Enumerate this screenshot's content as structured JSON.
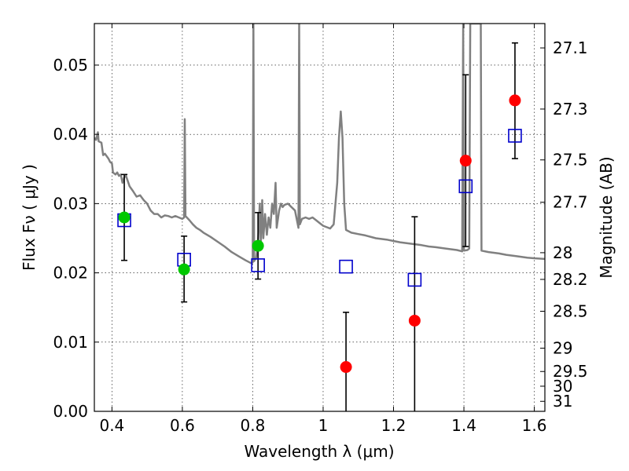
{
  "chart_data": {
    "type": "scatter",
    "title": "",
    "xlabel": "Wavelength  λ (μm)",
    "ylabel": "Flux  Fν  ( μJy )",
    "y2label": "Magnitude (AB)",
    "xlim": [
      0.35,
      1.63
    ],
    "ylim": [
      0.0,
      0.056
    ],
    "grid": true,
    "legend": "none",
    "x_ticks": [
      "0.4",
      "0.6",
      "0.8",
      "1",
      "1.2",
      "1.4",
      "1.6"
    ],
    "x_tick_values": [
      0.4,
      0.6,
      0.8,
      1.0,
      1.2,
      1.4,
      1.6
    ],
    "y_ticks": [
      "0.00",
      "0.01",
      "0.02",
      "0.03",
      "0.04",
      "0.05"
    ],
    "y_tick_values": [
      0.0,
      0.01,
      0.02,
      0.03,
      0.04,
      0.05
    ],
    "mag_ticks": [
      "27.1",
      "27.3",
      "27.5",
      "27.7",
      "28",
      "28.2",
      "28.5",
      "29",
      "29.5",
      "30",
      "31"
    ],
    "mag_tick_values": [
      27.1,
      27.3,
      27.5,
      27.7,
      28.0,
      28.2,
      28.5,
      29.0,
      29.5,
      30.0,
      31.0
    ],
    "colors": {
      "template": "#808080",
      "green": "#00c800",
      "red": "#ff0000",
      "model": "#0000cc",
      "errorbar": "#000000"
    },
    "template_spectrum": [
      [
        0.35,
        0.0395
      ],
      [
        0.355,
        0.0392
      ],
      [
        0.36,
        0.0403
      ],
      [
        0.362,
        0.039
      ],
      [
        0.37,
        0.0388
      ],
      [
        0.375,
        0.037
      ],
      [
        0.38,
        0.0372
      ],
      [
        0.39,
        0.0365
      ],
      [
        0.395,
        0.036
      ],
      [
        0.4,
        0.0358
      ],
      [
        0.403,
        0.0345
      ],
      [
        0.41,
        0.0342
      ],
      [
        0.415,
        0.0345
      ],
      [
        0.42,
        0.034
      ],
      [
        0.425,
        0.0342
      ],
      [
        0.43,
        0.033
      ],
      [
        0.435,
        0.0338
      ],
      [
        0.44,
        0.034
      ],
      [
        0.45,
        0.0325
      ],
      [
        0.46,
        0.0318
      ],
      [
        0.47,
        0.031
      ],
      [
        0.48,
        0.0312
      ],
      [
        0.49,
        0.0305
      ],
      [
        0.5,
        0.03
      ],
      [
        0.51,
        0.029
      ],
      [
        0.52,
        0.0285
      ],
      [
        0.53,
        0.0285
      ],
      [
        0.54,
        0.028
      ],
      [
        0.55,
        0.0283
      ],
      [
        0.56,
        0.0282
      ],
      [
        0.57,
        0.028
      ],
      [
        0.58,
        0.0282
      ],
      [
        0.59,
        0.028
      ],
      [
        0.6,
        0.0278
      ],
      [
        0.605,
        0.028
      ],
      [
        0.607,
        0.0422
      ],
      [
        0.609,
        0.0282
      ],
      [
        0.62,
        0.0276
      ],
      [
        0.63,
        0.027
      ],
      [
        0.64,
        0.0265
      ],
      [
        0.65,
        0.0262
      ],
      [
        0.66,
        0.0258
      ],
      [
        0.68,
        0.0252
      ],
      [
        0.7,
        0.0245
      ],
      [
        0.72,
        0.0238
      ],
      [
        0.74,
        0.023
      ],
      [
        0.76,
        0.0224
      ],
      [
        0.78,
        0.0218
      ],
      [
        0.795,
        0.0214
      ],
      [
        0.8,
        0.0215
      ],
      [
        0.802,
        0.056
      ],
      [
        0.804,
        0.0217
      ],
      [
        0.81,
        0.0222
      ],
      [
        0.815,
        0.0245
      ],
      [
        0.82,
        0.03
      ],
      [
        0.823,
        0.024
      ],
      [
        0.827,
        0.0305
      ],
      [
        0.83,
        0.025
      ],
      [
        0.835,
        0.0285
      ],
      [
        0.84,
        0.0255
      ],
      [
        0.845,
        0.028
      ],
      [
        0.85,
        0.0265
      ],
      [
        0.855,
        0.03
      ],
      [
        0.86,
        0.0285
      ],
      [
        0.865,
        0.033
      ],
      [
        0.868,
        0.0265
      ],
      [
        0.875,
        0.029
      ],
      [
        0.88,
        0.03
      ],
      [
        0.885,
        0.0295
      ],
      [
        0.89,
        0.0298
      ],
      [
        0.9,
        0.03
      ],
      [
        0.91,
        0.0295
      ],
      [
        0.92,
        0.029
      ],
      [
        0.928,
        0.027
      ],
      [
        0.93,
        0.0265
      ],
      [
        0.932,
        0.056
      ],
      [
        0.934,
        0.027
      ],
      [
        0.94,
        0.0278
      ],
      [
        0.95,
        0.028
      ],
      [
        0.96,
        0.0278
      ],
      [
        0.97,
        0.028
      ],
      [
        0.98,
        0.0276
      ],
      [
        0.99,
        0.0272
      ],
      [
        1.0,
        0.0268
      ],
      [
        1.01,
        0.0266
      ],
      [
        1.02,
        0.0264
      ],
      [
        1.03,
        0.027
      ],
      [
        1.04,
        0.033
      ],
      [
        1.045,
        0.0395
      ],
      [
        1.05,
        0.0433
      ],
      [
        1.055,
        0.0395
      ],
      [
        1.06,
        0.03
      ],
      [
        1.065,
        0.0262
      ],
      [
        1.08,
        0.0258
      ],
      [
        1.1,
        0.0256
      ],
      [
        1.12,
        0.0254
      ],
      [
        1.15,
        0.025
      ],
      [
        1.18,
        0.0248
      ],
      [
        1.2,
        0.0246
      ],
      [
        1.22,
        0.0244
      ],
      [
        1.25,
        0.0242
      ],
      [
        1.28,
        0.024
      ],
      [
        1.3,
        0.0238
      ],
      [
        1.32,
        0.0237
      ],
      [
        1.35,
        0.0235
      ],
      [
        1.38,
        0.0233
      ],
      [
        1.395,
        0.0231
      ],
      [
        1.398,
        0.056
      ],
      [
        1.4,
        0.0232
      ],
      [
        1.41,
        0.0233
      ],
      [
        1.415,
        0.0235
      ],
      [
        1.418,
        0.056
      ],
      [
        1.43,
        0.056
      ],
      [
        1.44,
        0.056
      ],
      [
        1.448,
        0.056
      ],
      [
        1.45,
        0.0232
      ],
      [
        1.47,
        0.023
      ],
      [
        1.5,
        0.0228
      ],
      [
        1.52,
        0.0226
      ],
      [
        1.55,
        0.0224
      ],
      [
        1.58,
        0.0222
      ],
      [
        1.6,
        0.0221
      ],
      [
        1.63,
        0.022
      ]
    ],
    "model_points": [
      {
        "x": 0.435,
        "y": 0.0276
      },
      {
        "x": 0.605,
        "y": 0.0219
      },
      {
        "x": 0.815,
        "y": 0.0211
      },
      {
        "x": 1.065,
        "y": 0.0209
      },
      {
        "x": 1.26,
        "y": 0.019
      },
      {
        "x": 1.405,
        "y": 0.0325
      },
      {
        "x": 1.545,
        "y": 0.0398
      }
    ],
    "observed_points": [
      {
        "x": 0.435,
        "y": 0.028,
        "ylo": 0.0218,
        "yhi": 0.0342,
        "color": "green"
      },
      {
        "x": 0.605,
        "y": 0.0205,
        "ylo": 0.0158,
        "yhi": 0.0253,
        "color": "green"
      },
      {
        "x": 0.815,
        "y": 0.0239,
        "ylo": 0.0191,
        "yhi": 0.0287,
        "color": "green"
      },
      {
        "x": 1.065,
        "y": 0.0064,
        "ylo": 0.0,
        "yhi": 0.0143,
        "color": "red"
      },
      {
        "x": 1.26,
        "y": 0.0131,
        "ylo": 0.0,
        "yhi": 0.0281,
        "color": "red"
      },
      {
        "x": 1.405,
        "y": 0.0362,
        "ylo": 0.0238,
        "yhi": 0.0486,
        "color": "red"
      },
      {
        "x": 1.545,
        "y": 0.0449,
        "ylo": 0.0365,
        "yhi": 0.0532,
        "color": "red"
      }
    ]
  }
}
